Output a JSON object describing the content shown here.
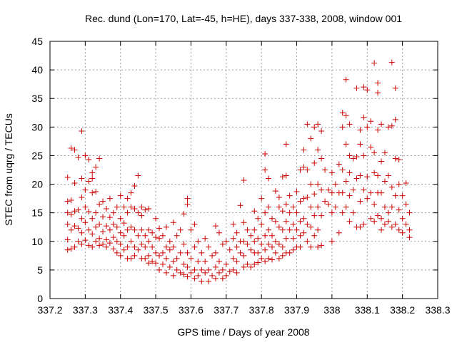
{
  "chart_data": {
    "type": "scatter",
    "title": "Rec. dund (Lon=170, Lat=-45, h=HE), days 337-338, 2008, window 001",
    "xlabel": "GPS time / Days of year 2008",
    "ylabel": "STEC from uqrg / TECUs",
    "xlim": [
      337.2,
      338.3
    ],
    "ylim": [
      0,
      45
    ],
    "xticks": [
      337.2,
      337.3,
      337.4,
      337.5,
      337.6,
      337.7,
      337.8,
      337.9,
      338,
      338.1,
      338.2,
      338.3
    ],
    "xtick_labels": [
      "337.2",
      "337.3",
      "337.4",
      "337.5",
      "337.6",
      "337.7",
      "337.8",
      "337.9",
      "338",
      "338.1",
      "338.2",
      "338.3"
    ],
    "yticks": [
      0,
      5,
      10,
      15,
      20,
      25,
      30,
      35,
      40,
      45
    ],
    "ytick_labels": [
      "0",
      "5",
      "10",
      "15",
      "20",
      "25",
      "30",
      "35",
      "40",
      "45"
    ],
    "grid": true,
    "marker": "+",
    "color": "#cc0000",
    "points": [
      [
        337.25,
        21.2
      ],
      [
        337.25,
        17.0
      ],
      [
        337.25,
        15.0
      ],
      [
        337.25,
        13.0
      ],
      [
        337.25,
        10.3
      ],
      [
        337.25,
        8.5
      ],
      [
        337.26,
        26.3
      ],
      [
        337.26,
        17.2
      ],
      [
        337.26,
        14.7
      ],
      [
        337.26,
        12.0
      ],
      [
        337.26,
        8.7
      ],
      [
        337.27,
        26.0
      ],
      [
        337.27,
        20.2
      ],
      [
        337.27,
        15.3
      ],
      [
        337.27,
        12.7
      ],
      [
        337.27,
        9.0
      ],
      [
        337.28,
        24.7
      ],
      [
        337.28,
        15.5
      ],
      [
        337.28,
        12.3
      ],
      [
        337.28,
        10.0
      ],
      [
        337.29,
        29.3
      ],
      [
        337.29,
        21.0
      ],
      [
        337.29,
        17.7
      ],
      [
        337.29,
        14.0
      ],
      [
        337.29,
        11.5
      ],
      [
        337.29,
        9.5
      ],
      [
        337.3,
        25.0
      ],
      [
        337.3,
        19.0
      ],
      [
        337.3,
        16.0
      ],
      [
        337.3,
        13.3
      ],
      [
        337.3,
        10.2
      ],
      [
        337.31,
        24.3
      ],
      [
        337.31,
        20.5
      ],
      [
        337.31,
        15.2
      ],
      [
        337.31,
        12.0
      ],
      [
        337.31,
        9.3
      ],
      [
        337.32,
        22.0
      ],
      [
        337.32,
        21.0
      ],
      [
        337.32,
        18.5
      ],
      [
        337.32,
        14.0
      ],
      [
        337.32,
        11.3
      ],
      [
        337.32,
        9.0
      ],
      [
        337.33,
        23.0
      ],
      [
        337.33,
        18.7
      ],
      [
        337.33,
        15.0
      ],
      [
        337.33,
        12.5
      ],
      [
        337.33,
        10.0
      ],
      [
        337.34,
        24.5
      ],
      [
        337.34,
        16.5
      ],
      [
        337.34,
        13.0
      ],
      [
        337.34,
        10.5
      ],
      [
        337.34,
        9.3
      ],
      [
        337.35,
        17.0
      ],
      [
        337.35,
        14.3
      ],
      [
        337.35,
        11.7
      ],
      [
        337.35,
        9.5
      ],
      [
        337.36,
        15.7
      ],
      [
        337.36,
        12.7
      ],
      [
        337.36,
        10.3
      ],
      [
        337.36,
        9.0
      ],
      [
        337.37,
        17.5
      ],
      [
        337.37,
        14.2
      ],
      [
        337.37,
        12.0
      ],
      [
        337.37,
        9.7
      ],
      [
        337.38,
        15.0
      ],
      [
        337.38,
        13.0
      ],
      [
        337.38,
        10.7
      ],
      [
        337.38,
        8.7
      ],
      [
        337.39,
        16.0
      ],
      [
        337.39,
        12.5
      ],
      [
        337.39,
        10.0
      ],
      [
        337.39,
        8.0
      ],
      [
        337.4,
        18.0
      ],
      [
        337.4,
        14.0
      ],
      [
        337.4,
        11.5
      ],
      [
        337.4,
        9.5
      ],
      [
        337.4,
        7.5
      ],
      [
        337.41,
        16.0
      ],
      [
        337.41,
        13.2
      ],
      [
        337.41,
        11.0
      ],
      [
        337.41,
        8.5
      ],
      [
        337.42,
        17.5
      ],
      [
        337.42,
        15.0
      ],
      [
        337.42,
        12.0
      ],
      [
        337.42,
        9.0
      ],
      [
        337.42,
        7.0
      ],
      [
        337.43,
        18.5
      ],
      [
        337.43,
        16.0
      ],
      [
        337.43,
        12.5
      ],
      [
        337.43,
        10.0
      ],
      [
        337.43,
        7.0
      ],
      [
        337.44,
        19.7
      ],
      [
        337.44,
        15.7
      ],
      [
        337.44,
        12.0
      ],
      [
        337.44,
        9.0
      ],
      [
        337.44,
        7.5
      ],
      [
        337.45,
        21.5
      ],
      [
        337.45,
        15.0
      ],
      [
        337.45,
        11.0
      ],
      [
        337.45,
        8.5
      ],
      [
        337.46,
        16.0
      ],
      [
        337.46,
        14.5
      ],
      [
        337.46,
        12.0
      ],
      [
        337.46,
        9.5
      ],
      [
        337.46,
        7.0
      ],
      [
        337.47,
        15.5
      ],
      [
        337.47,
        11.0
      ],
      [
        337.47,
        9.0
      ],
      [
        337.47,
        7.0
      ],
      [
        337.48,
        15.7
      ],
      [
        337.48,
        12.0
      ],
      [
        337.48,
        10.0
      ],
      [
        337.48,
        7.5
      ],
      [
        337.48,
        6.2
      ],
      [
        337.49,
        11.5
      ],
      [
        337.49,
        9.0
      ],
      [
        337.49,
        6.5
      ],
      [
        337.5,
        14.0
      ],
      [
        337.5,
        10.7
      ],
      [
        337.5,
        8.0
      ],
      [
        337.5,
        6.2
      ],
      [
        337.51,
        12.3
      ],
      [
        337.51,
        10.5
      ],
      [
        337.51,
        7.5
      ],
      [
        337.51,
        5.0
      ],
      [
        337.52,
        11.0
      ],
      [
        337.52,
        8.0
      ],
      [
        337.52,
        6.0
      ],
      [
        337.53,
        12.5
      ],
      [
        337.53,
        9.0
      ],
      [
        337.53,
        7.0
      ],
      [
        337.53,
        4.5
      ],
      [
        337.54,
        10.0
      ],
      [
        337.54,
        8.5
      ],
      [
        337.54,
        5.5
      ],
      [
        337.55,
        13.3
      ],
      [
        337.55,
        9.0
      ],
      [
        337.55,
        6.5
      ],
      [
        337.55,
        4.0
      ],
      [
        337.56,
        11.0
      ],
      [
        337.56,
        7.0
      ],
      [
        337.56,
        5.0
      ],
      [
        337.57,
        12.0
      ],
      [
        337.57,
        8.0
      ],
      [
        337.57,
        4.5
      ],
      [
        337.58,
        14.8
      ],
      [
        337.58,
        9.5
      ],
      [
        337.58,
        6.0
      ],
      [
        337.58,
        4.2
      ],
      [
        337.59,
        17.5
      ],
      [
        337.59,
        16.5
      ],
      [
        337.59,
        8.0
      ],
      [
        337.59,
        5.5
      ],
      [
        337.59,
        3.8
      ],
      [
        337.6,
        12.0
      ],
      [
        337.6,
        7.0
      ],
      [
        337.6,
        4.5
      ],
      [
        337.61,
        13.0
      ],
      [
        337.61,
        9.0
      ],
      [
        337.61,
        5.0
      ],
      [
        337.61,
        3.5
      ],
      [
        337.62,
        10.0
      ],
      [
        337.62,
        6.5
      ],
      [
        337.62,
        4.0
      ],
      [
        337.63,
        8.0
      ],
      [
        337.63,
        5.0
      ],
      [
        337.63,
        3.0
      ],
      [
        337.64,
        10.5
      ],
      [
        337.64,
        6.5
      ],
      [
        337.64,
        4.5
      ],
      [
        337.65,
        9.0
      ],
      [
        337.65,
        5.0
      ],
      [
        337.65,
        3.0
      ],
      [
        337.66,
        7.5
      ],
      [
        337.66,
        4.0
      ],
      [
        337.67,
        12.7
      ],
      [
        337.67,
        8.0
      ],
      [
        337.67,
        5.5
      ],
      [
        337.67,
        3.5
      ],
      [
        337.68,
        11.5
      ],
      [
        337.68,
        6.5
      ],
      [
        337.68,
        4.5
      ],
      [
        337.69,
        9.5
      ],
      [
        337.69,
        5.0
      ],
      [
        337.69,
        3.5
      ],
      [
        337.7,
        10.0
      ],
      [
        337.7,
        6.0
      ],
      [
        337.7,
        4.0
      ],
      [
        337.71,
        8.5
      ],
      [
        337.71,
        4.7
      ],
      [
        337.72,
        13.0
      ],
      [
        337.72,
        10.5
      ],
      [
        337.72,
        7.0
      ],
      [
        337.72,
        5.0
      ],
      [
        337.73,
        11.5
      ],
      [
        337.73,
        9.0
      ],
      [
        337.73,
        6.5
      ],
      [
        337.73,
        4.5
      ],
      [
        337.74,
        16.3
      ],
      [
        337.74,
        10.0
      ],
      [
        337.74,
        8.0
      ],
      [
        337.75,
        20.7
      ],
      [
        337.75,
        13.3
      ],
      [
        337.75,
        10.0
      ],
      [
        337.75,
        7.5
      ],
      [
        337.75,
        5.5
      ],
      [
        337.76,
        12.0
      ],
      [
        337.76,
        9.5
      ],
      [
        337.76,
        6.0
      ],
      [
        337.77,
        11.0
      ],
      [
        337.77,
        8.5
      ],
      [
        337.77,
        5.5
      ],
      [
        337.78,
        15.3
      ],
      [
        337.78,
        12.0
      ],
      [
        337.78,
        10.0
      ],
      [
        337.78,
        8.0
      ],
      [
        337.78,
        6.0
      ],
      [
        337.79,
        14.0
      ],
      [
        337.79,
        10.5
      ],
      [
        337.79,
        8.0
      ],
      [
        337.79,
        6.3
      ],
      [
        337.8,
        17.5
      ],
      [
        337.8,
        13.0
      ],
      [
        337.8,
        9.5
      ],
      [
        337.8,
        7.0
      ],
      [
        337.81,
        25.3
      ],
      [
        337.81,
        22.5
      ],
      [
        337.81,
        15.0
      ],
      [
        337.81,
        11.0
      ],
      [
        337.81,
        8.5
      ],
      [
        337.81,
        6.5
      ],
      [
        337.82,
        21.0
      ],
      [
        337.82,
        16.0
      ],
      [
        337.82,
        12.0
      ],
      [
        337.82,
        9.5
      ],
      [
        337.82,
        7.0
      ],
      [
        337.83,
        14.0
      ],
      [
        337.83,
        11.0
      ],
      [
        337.83,
        9.0
      ],
      [
        337.83,
        6.8
      ],
      [
        337.84,
        18.8
      ],
      [
        337.84,
        13.5
      ],
      [
        337.84,
        10.0
      ],
      [
        337.84,
        8.0
      ],
      [
        337.85,
        17.7
      ],
      [
        337.85,
        16.0
      ],
      [
        337.85,
        12.5
      ],
      [
        337.85,
        9.5
      ],
      [
        337.85,
        7.0
      ],
      [
        337.86,
        21.3
      ],
      [
        337.86,
        15.3
      ],
      [
        337.86,
        12.0
      ],
      [
        337.86,
        9.0
      ],
      [
        337.86,
        7.5
      ],
      [
        337.87,
        27.0
      ],
      [
        337.87,
        21.5
      ],
      [
        337.87,
        16.5
      ],
      [
        337.87,
        13.5
      ],
      [
        337.87,
        10.5
      ],
      [
        337.87,
        8.0
      ],
      [
        337.88,
        18.0
      ],
      [
        337.88,
        15.0
      ],
      [
        337.88,
        12.0
      ],
      [
        337.88,
        8.0
      ],
      [
        337.89,
        16.0
      ],
      [
        337.89,
        13.0
      ],
      [
        337.89,
        10.5
      ],
      [
        337.89,
        8.5
      ],
      [
        337.9,
        18.7
      ],
      [
        337.9,
        15.0
      ],
      [
        337.9,
        12.0
      ],
      [
        337.9,
        9.0
      ],
      [
        337.91,
        22.5
      ],
      [
        337.91,
        17.0
      ],
      [
        337.91,
        13.5
      ],
      [
        337.91,
        11.0
      ],
      [
        337.91,
        9.0
      ],
      [
        337.92,
        26.0
      ],
      [
        337.92,
        23.0
      ],
      [
        337.92,
        17.5
      ],
      [
        337.92,
        14.0
      ],
      [
        337.92,
        11.5
      ],
      [
        337.93,
        30.5
      ],
      [
        337.93,
        22.5
      ],
      [
        337.93,
        17.7
      ],
      [
        337.93,
        13.0
      ],
      [
        337.93,
        10.0
      ],
      [
        337.94,
        28.0
      ],
      [
        337.94,
        20.0
      ],
      [
        337.94,
        16.0
      ],
      [
        337.94,
        12.5
      ],
      [
        337.94,
        9.0
      ],
      [
        337.95,
        30.0
      ],
      [
        337.95,
        23.7
      ],
      [
        337.95,
        18.3
      ],
      [
        337.95,
        14.5
      ],
      [
        337.95,
        11.0
      ],
      [
        337.96,
        30.5
      ],
      [
        337.96,
        26.0
      ],
      [
        337.96,
        20.0
      ],
      [
        337.96,
        16.0
      ],
      [
        337.96,
        12.0
      ],
      [
        337.96,
        9.0
      ],
      [
        337.97,
        29.3
      ],
      [
        337.97,
        24.5
      ],
      [
        337.97,
        19.0
      ],
      [
        337.97,
        14.5
      ],
      [
        337.97,
        9.3
      ],
      [
        337.98,
        22.5
      ],
      [
        337.98,
        17.0
      ],
      [
        337.99,
        19.0
      ],
      [
        337.99,
        16.5
      ],
      [
        338.0,
        22.0
      ],
      [
        338.0,
        18.5
      ],
      [
        338.0,
        15.0
      ],
      [
        338.0,
        10.0
      ],
      [
        338.01,
        20.0
      ],
      [
        338.01,
        16.0
      ],
      [
        338.02,
        23.5
      ],
      [
        338.02,
        18.5
      ],
      [
        338.02,
        11.5
      ],
      [
        338.03,
        32.5
      ],
      [
        338.03,
        30.0
      ],
      [
        338.03,
        22.5
      ],
      [
        338.03,
        18.5
      ],
      [
        338.03,
        15.0
      ],
      [
        338.04,
        38.3
      ],
      [
        338.04,
        32.0
      ],
      [
        338.04,
        27.0
      ],
      [
        338.04,
        20.5
      ],
      [
        338.04,
        16.0
      ],
      [
        338.05,
        30.5
      ],
      [
        338.05,
        25.0
      ],
      [
        338.05,
        22.0
      ],
      [
        338.05,
        18.0
      ],
      [
        338.05,
        13.5
      ],
      [
        338.06,
        24.5
      ],
      [
        338.06,
        19.0
      ],
      [
        338.06,
        15.0
      ],
      [
        338.07,
        36.8
      ],
      [
        338.07,
        24.8
      ],
      [
        338.07,
        21.0
      ],
      [
        338.07,
        12.5
      ],
      [
        338.08,
        29.5
      ],
      [
        338.08,
        27.0
      ],
      [
        338.08,
        21.5
      ],
      [
        338.08,
        17.0
      ],
      [
        338.08,
        12.5
      ],
      [
        338.09,
        37.0
      ],
      [
        338.09,
        31.7
      ],
      [
        338.09,
        25.0
      ],
      [
        338.09,
        19.0
      ],
      [
        338.09,
        13.0
      ],
      [
        338.1,
        36.5
      ],
      [
        338.1,
        30.0
      ],
      [
        338.1,
        21.3
      ],
      [
        338.1,
        17.5
      ],
      [
        338.11,
        31.0
      ],
      [
        338.11,
        26.5
      ],
      [
        338.11,
        18.5
      ],
      [
        338.11,
        14.0
      ],
      [
        338.12,
        41.2
      ],
      [
        338.12,
        25.5
      ],
      [
        338.12,
        22.0
      ],
      [
        338.12,
        16.5
      ],
      [
        338.12,
        13.5
      ],
      [
        338.13,
        37.7
      ],
      [
        338.13,
        36.0
      ],
      [
        338.13,
        29.5
      ],
      [
        338.13,
        21.5
      ],
      [
        338.13,
        18.5
      ],
      [
        338.13,
        14.5
      ],
      [
        338.14,
        30.5
      ],
      [
        338.14,
        24.0
      ],
      [
        338.14,
        18.5
      ],
      [
        338.14,
        14.0
      ],
      [
        338.14,
        12.0
      ],
      [
        338.15,
        25.5
      ],
      [
        338.15,
        20.5
      ],
      [
        338.15,
        16.0
      ],
      [
        338.15,
        13.0
      ],
      [
        338.16,
        30.0
      ],
      [
        338.16,
        21.5
      ],
      [
        338.16,
        15.0
      ],
      [
        338.16,
        13.5
      ],
      [
        338.17,
        41.3
      ],
      [
        338.17,
        30.2
      ],
      [
        338.17,
        19.5
      ],
      [
        338.17,
        16.0
      ],
      [
        338.17,
        12.5
      ],
      [
        338.18,
        36.8
      ],
      [
        338.18,
        31.3
      ],
      [
        338.18,
        24.5
      ],
      [
        338.18,
        18.0
      ],
      [
        338.18,
        13.0
      ],
      [
        338.19,
        24.3
      ],
      [
        338.19,
        20.0
      ],
      [
        338.19,
        15.5
      ],
      [
        338.19,
        12.0
      ],
      [
        338.2,
        18.0
      ],
      [
        338.2,
        14.0
      ],
      [
        338.2,
        11.5
      ],
      [
        338.21,
        20.2
      ],
      [
        338.21,
        16.5
      ],
      [
        338.21,
        13.0
      ],
      [
        338.22,
        15.0
      ],
      [
        338.22,
        12.0
      ],
      [
        338.22,
        10.7
      ]
    ]
  }
}
